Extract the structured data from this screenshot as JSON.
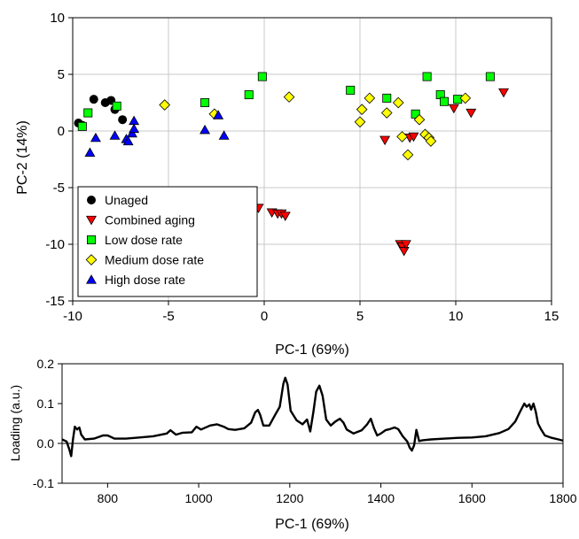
{
  "chart_data": [
    {
      "type": "scatter",
      "xlabel": "PC-1 (69%)",
      "ylabel": "PC-2 (14%)",
      "xlim": [
        -10,
        15
      ],
      "ylim": [
        -15,
        10
      ],
      "xticks": [
        -10,
        -5,
        0,
        5,
        10,
        15
      ],
      "yticks": [
        -15,
        -10,
        -5,
        0,
        5,
        10
      ],
      "xtick_labels": [
        "-10",
        "-5",
        "0",
        "5",
        "10",
        "15"
      ],
      "ytick_labels": [
        "-15",
        "-10",
        "-5",
        "0",
        "5",
        "10"
      ],
      "grid": true,
      "legend_position": "bottom-left",
      "series": [
        {
          "name": "Unaged",
          "marker": "circle",
          "color": "#000000",
          "points": [
            [
              -9.7,
              0.7
            ],
            [
              -9.5,
              0.5
            ],
            [
              -8.9,
              2.8
            ],
            [
              -8.3,
              2.5
            ],
            [
              -8.0,
              2.7
            ],
            [
              -7.8,
              1.9
            ],
            [
              -7.4,
              1.0
            ]
          ]
        },
        {
          "name": "Combined aging",
          "marker": "triangle-down",
          "color": "#ff0000",
          "points": [
            [
              -0.3,
              -6.8
            ],
            [
              0.4,
              -7.2
            ],
            [
              0.7,
              -7.3
            ],
            [
              0.9,
              -7.3
            ],
            [
              1.1,
              -7.5
            ],
            [
              6.3,
              -0.8
            ],
            [
              7.1,
              -10.0
            ],
            [
              7.2,
              -10.2
            ],
            [
              7.3,
              -10.6
            ],
            [
              7.4,
              -10.0
            ],
            [
              7.6,
              -0.6
            ],
            [
              7.8,
              -0.5
            ],
            [
              9.9,
              2.0
            ],
            [
              10.8,
              1.6
            ],
            [
              12.5,
              3.4
            ]
          ]
        },
        {
          "name": "Low dose rate",
          "marker": "square",
          "color": "#00ff00",
          "points": [
            [
              -9.5,
              0.4
            ],
            [
              -9.2,
              1.6
            ],
            [
              -7.7,
              2.2
            ],
            [
              -3.1,
              2.5
            ],
            [
              -0.8,
              3.2
            ],
            [
              -0.1,
              4.8
            ],
            [
              4.5,
              3.6
            ],
            [
              6.4,
              2.9
            ],
            [
              7.9,
              1.5
            ],
            [
              8.5,
              4.8
            ],
            [
              9.2,
              3.2
            ],
            [
              9.4,
              2.6
            ],
            [
              10.1,
              2.8
            ],
            [
              11.8,
              4.8
            ]
          ]
        },
        {
          "name": "Medium dose rate",
          "marker": "diamond",
          "color": "#ffff00",
          "points": [
            [
              -5.2,
              2.3
            ],
            [
              -2.6,
              1.5
            ],
            [
              1.3,
              3.0
            ],
            [
              5.0,
              0.8
            ],
            [
              5.1,
              1.9
            ],
            [
              5.5,
              2.9
            ],
            [
              6.4,
              1.6
            ],
            [
              7.0,
              2.5
            ],
            [
              7.2,
              -0.5
            ],
            [
              7.5,
              -2.1
            ],
            [
              8.1,
              1.0
            ],
            [
              8.4,
              -0.3
            ],
            [
              8.6,
              -0.6
            ],
            [
              8.7,
              -0.9
            ],
            [
              10.5,
              2.9
            ]
          ]
        },
        {
          "name": "High dose rate",
          "marker": "triangle-up",
          "color": "#0000ff",
          "points": [
            [
              -9.1,
              -1.9
            ],
            [
              -8.8,
              -0.6
            ],
            [
              -7.8,
              -0.4
            ],
            [
              -7.2,
              -0.7
            ],
            [
              -7.1,
              -0.9
            ],
            [
              -6.9,
              -0.2
            ],
            [
              -6.8,
              0.9
            ],
            [
              -6.8,
              0.2
            ],
            [
              -3.1,
              0.1
            ],
            [
              -2.4,
              1.4
            ],
            [
              -2.1,
              -0.4
            ]
          ]
        }
      ]
    },
    {
      "type": "line",
      "xlabel": "PC-1 (69%)",
      "ylabel": "Loading (a.u.)",
      "xlim": [
        700,
        1800
      ],
      "ylim": [
        -0.1,
        0.2
      ],
      "xticks": [
        800,
        1000,
        1200,
        1400,
        1600,
        1800
      ],
      "yticks": [
        -0.1,
        0.0,
        0.1,
        0.2
      ],
      "xtick_labels": [
        "800",
        "1000",
        "1200",
        "1400",
        "1600",
        "1800"
      ],
      "ytick_labels": [
        "-0.1",
        "0.0",
        "0.1",
        "0.2"
      ],
      "zero_line": true,
      "grid": false,
      "series": [
        {
          "color": "#000000",
          "x": [
            700,
            710,
            716,
            720,
            724,
            728,
            733,
            738,
            742,
            750,
            770,
            790,
            800,
            815,
            840,
            870,
            900,
            930,
            938,
            950,
            965,
            985,
            995,
            1005,
            1025,
            1040,
            1055,
            1065,
            1080,
            1100,
            1115,
            1124,
            1130,
            1135,
            1142,
            1155,
            1168,
            1178,
            1186,
            1190,
            1195,
            1202,
            1215,
            1228,
            1238,
            1245,
            1252,
            1258,
            1265,
            1272,
            1280,
            1290,
            1300,
            1310,
            1318,
            1325,
            1340,
            1358,
            1370,
            1378,
            1385,
            1392,
            1400,
            1410,
            1420,
            1430,
            1438,
            1448,
            1458,
            1463,
            1468,
            1473,
            1478,
            1484,
            1492,
            1510,
            1540,
            1570,
            1600,
            1630,
            1660,
            1680,
            1695,
            1705,
            1715,
            1720,
            1726,
            1730,
            1735,
            1740,
            1745,
            1752,
            1760,
            1775,
            1790,
            1800
          ],
          "y": [
            0.01,
            0.005,
            -0.015,
            -0.032,
            0.01,
            0.042,
            0.035,
            0.04,
            0.022,
            0.01,
            0.012,
            0.02,
            0.02,
            0.012,
            0.012,
            0.015,
            0.018,
            0.025,
            0.033,
            0.022,
            0.027,
            0.028,
            0.042,
            0.035,
            0.045,
            0.048,
            0.042,
            0.036,
            0.034,
            0.038,
            0.052,
            0.078,
            0.084,
            0.072,
            0.045,
            0.045,
            0.072,
            0.092,
            0.15,
            0.165,
            0.148,
            0.082,
            0.058,
            0.048,
            0.06,
            0.03,
            0.08,
            0.13,
            0.145,
            0.12,
            0.06,
            0.045,
            0.055,
            0.062,
            0.052,
            0.035,
            0.025,
            0.033,
            0.048,
            0.062,
            0.038,
            0.02,
            0.025,
            0.033,
            0.036,
            0.04,
            0.036,
            0.018,
            0.005,
            -0.01,
            -0.018,
            -0.005,
            0.034,
            0.006,
            0.008,
            0.01,
            0.012,
            0.014,
            0.015,
            0.018,
            0.026,
            0.036,
            0.055,
            0.078,
            0.1,
            0.092,
            0.098,
            0.085,
            0.1,
            0.08,
            0.05,
            0.035,
            0.02,
            0.014,
            0.01,
            0.007
          ]
        }
      ]
    }
  ]
}
